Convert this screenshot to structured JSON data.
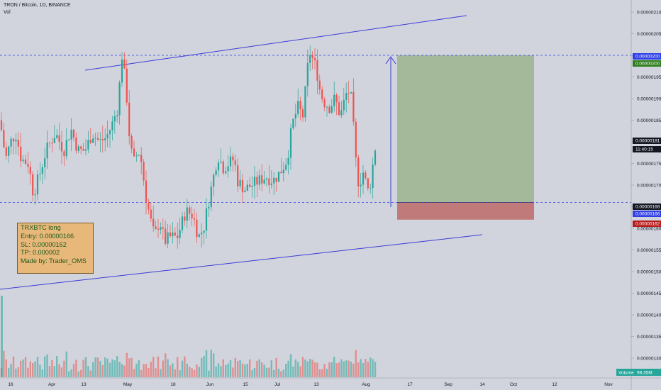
{
  "header": {
    "title": "TRON / Bitcoin, 1D, BINANCE",
    "vol_label": "Vol"
  },
  "note": {
    "lines": [
      "TRXBTC long",
      "Entry: 0.00000166",
      "SL: 0.00000162",
      "TP: 0.000002",
      "Made by: Trader_OMS"
    ]
  },
  "y_axis": {
    "ticks": [
      "0.00000210",
      "0.00000205",
      "0.00000200",
      "0.00000195",
      "0.00000190",
      "0.00000185",
      "0.00000180",
      "0.00000175",
      "0.00000170",
      "0.00000165",
      "0.00000160",
      "0.00000155",
      "0.00000150",
      "0.00000145",
      "0.00000140",
      "0.00000135",
      "0.00000130"
    ]
  },
  "x_axis": {
    "ticks": [
      "16",
      "Apr",
      "13",
      "May",
      "18",
      "Jun",
      "15",
      "Jul",
      "13",
      "Aug",
      "17",
      "Sep",
      "14",
      "Oct",
      "12",
      "Nov"
    ]
  },
  "price_tags": {
    "tp_top": "0.00000200",
    "tp_green": "0.00000200",
    "last_price": "0.00000181",
    "countdown": "11:40:15",
    "entry_black": "0.00000166",
    "entry_blue": "0.00000166",
    "stop": "0.00000162"
  },
  "volume_tag": {
    "label": "Volume",
    "value": "98.35M"
  },
  "colors": {
    "background": "#d1d4dc",
    "up": "#26a69a",
    "down": "#ef5350",
    "channel": "#3b3bd9",
    "dashed": "#2f3fe6",
    "target_zone": "#a3b99a",
    "stop_zone": "#c07a7a",
    "note_bg": "#e8b87a",
    "note_text": "#1b5a1b"
  },
  "chart_data": {
    "type": "candlestick",
    "symbol": "TRXBTC",
    "ylim": [
      1.28e-06,
      2.12e-06
    ],
    "entry": 1.66e-06,
    "stop_loss": 1.62e-06,
    "take_profit": 2e-06,
    "last_price": 1.81e-06,
    "volume_last": "98.35M"
  }
}
